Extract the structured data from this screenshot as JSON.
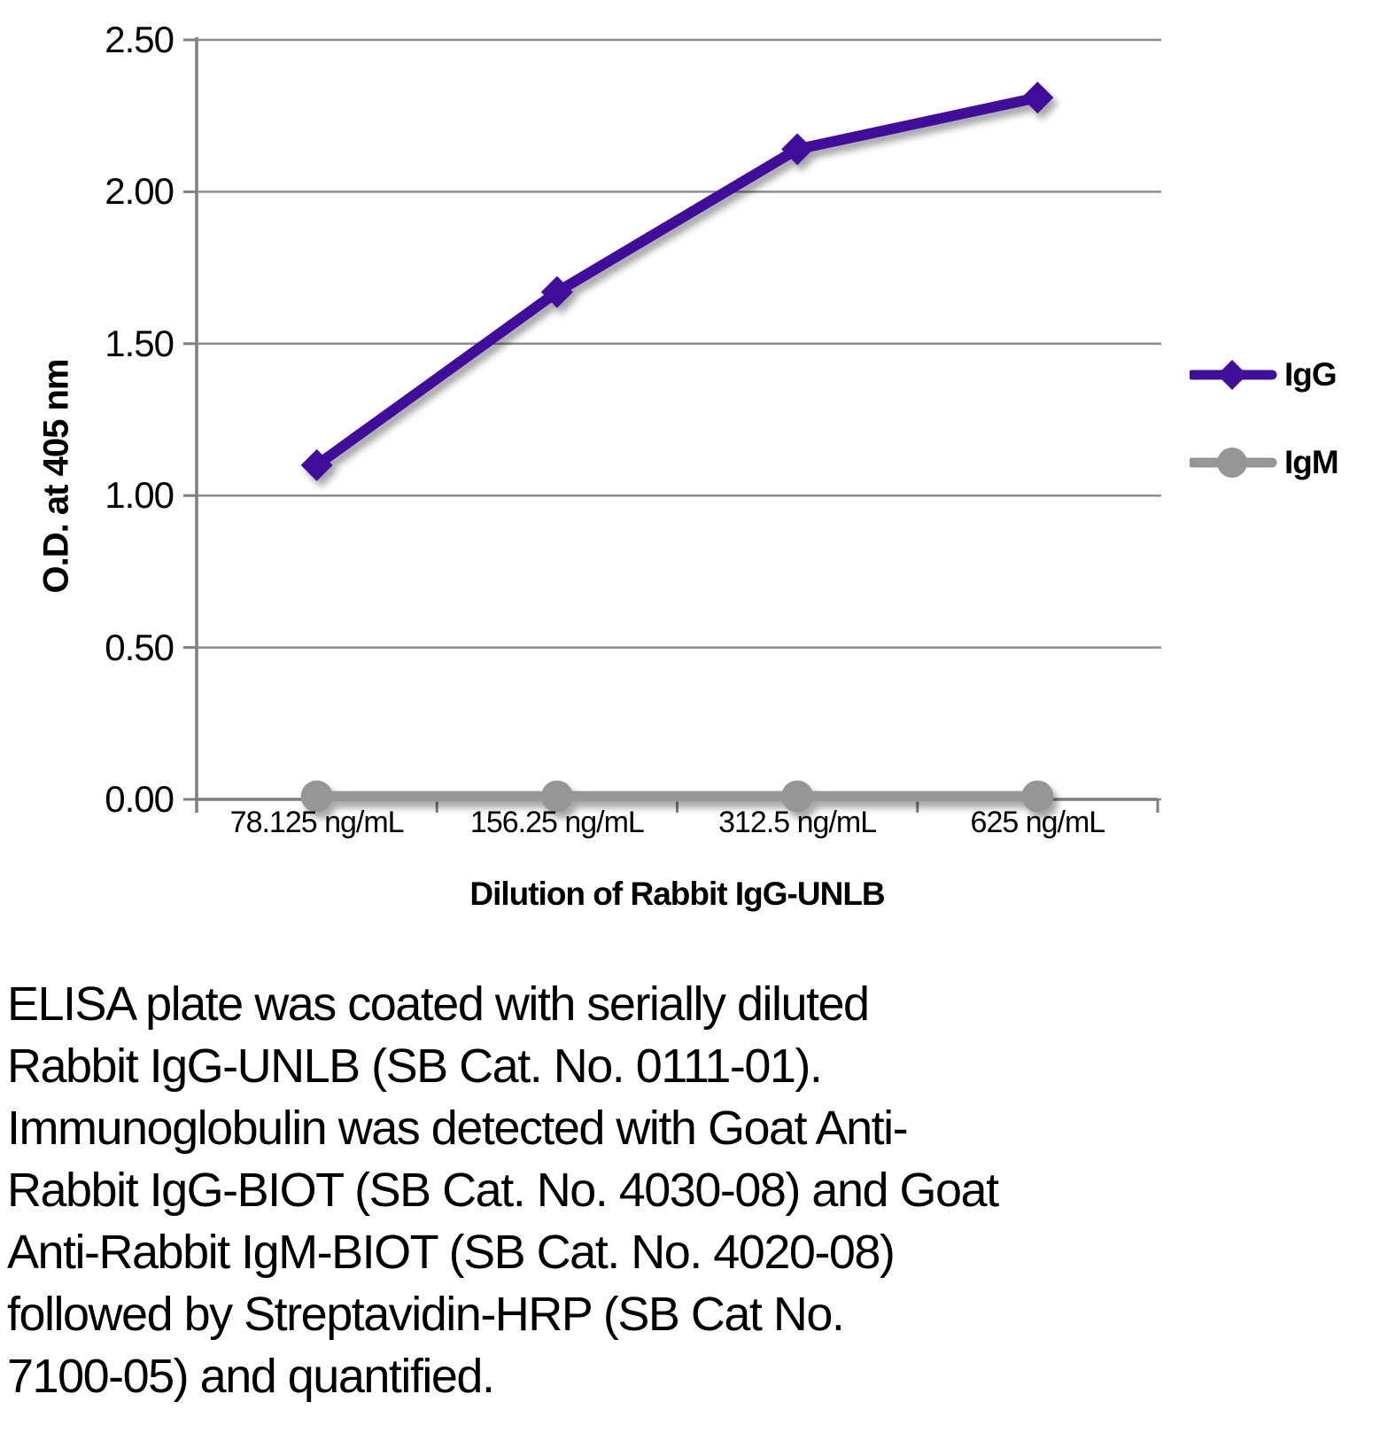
{
  "chart_data": {
    "type": "line",
    "title": "",
    "xlabel": "Dilution of Rabbit IgG-UNLB",
    "ylabel": "O.D. at 405 nm",
    "categories": [
      "78.125 ng/mL",
      "156.25 ng/mL",
      "312.5 ng/mL",
      "625 ng/mL"
    ],
    "series": [
      {
        "name": "IgG",
        "values": [
          1.1,
          1.67,
          2.14,
          2.31
        ],
        "color": "#41109B",
        "marker": "diamond"
      },
      {
        "name": "IgM",
        "values": [
          0.01,
          0.01,
          0.01,
          0.01
        ],
        "color": "#969696",
        "marker": "circle"
      }
    ],
    "ylim": [
      0,
      2.5
    ],
    "ytick_step": 0.5,
    "ytick_labels": [
      "0.00",
      "0.50",
      "1.00",
      "1.50",
      "2.00",
      "2.50"
    ],
    "grid": true,
    "legend_position": "right",
    "colors": {
      "grid": "#8D8D8D",
      "axis": "#7F7F7F",
      "text": "#000000"
    }
  },
  "caption": {
    "lines": [
      "ELISA plate was coated with serially diluted",
      "Rabbit IgG-UNLB (SB Cat. No. 0111-01).",
      "Immunoglobulin was detected with Goat Anti-",
      "Rabbit IgG-BIOT (SB Cat. No. 4030-08) and Goat",
      "Anti-Rabbit IgM-BIOT (SB Cat. No. 4020-08)",
      "followed by Streptavidin-HRP (SB Cat No.",
      "7100-05) and quantified."
    ]
  }
}
